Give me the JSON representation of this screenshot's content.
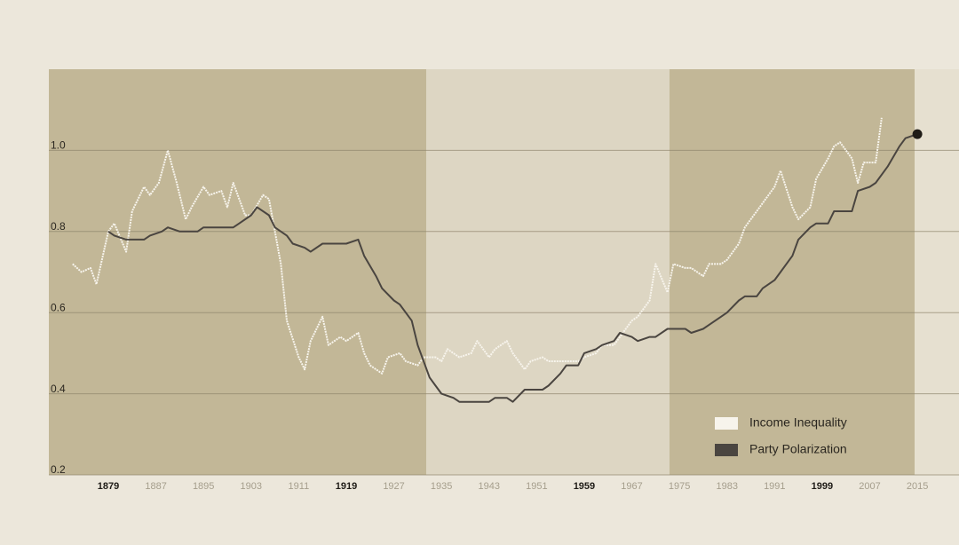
{
  "chart_data": {
    "type": "line",
    "xlim": [
      1869,
      2022
    ],
    "ylim": [
      0.2,
      1.2
    ],
    "xticks": [
      1879,
      1887,
      1895,
      1903,
      1911,
      1919,
      1927,
      1935,
      1943,
      1951,
      1959,
      1967,
      1975,
      1983,
      1991,
      1999,
      2007,
      2015
    ],
    "yticks": [
      {
        "value": 0.2,
        "label": "0.2"
      },
      {
        "value": 0.4,
        "label": "0.4"
      },
      {
        "value": 0.6,
        "label": "0.6"
      },
      {
        "value": 0.8,
        "label": "0.8"
      },
      {
        "value": 1,
        "label": "1.0"
      }
    ],
    "grid": true,
    "legend": "lower right",
    "series": [
      {
        "name": "Income Inequality",
        "color": "#f7f4ec",
        "x": [
          1873,
          1874.5,
          1876,
          1877,
          1879,
          1880,
          1882,
          1883,
          1885,
          1886,
          1887.5,
          1889,
          1890.5,
          1892,
          1893,
          1895,
          1896,
          1898,
          1899,
          1900,
          1902,
          1903,
          1905,
          1906,
          1908,
          1909,
          1911,
          1912,
          1913,
          1915,
          1916,
          1918,
          1919,
          1921,
          1922,
          1923,
          1925,
          1926,
          1928,
          1929,
          1931,
          1932,
          1934,
          1935,
          1936,
          1938,
          1940,
          1941,
          1943,
          1944,
          1946,
          1947,
          1949,
          1950,
          1952,
          1953,
          1955,
          1956,
          1958,
          1959,
          1961,
          1962,
          1964,
          1965,
          1967,
          1968,
          1970,
          1971,
          1973,
          1974,
          1976,
          1977,
          1979,
          1980,
          1982,
          1983,
          1985,
          1986,
          1988,
          1989,
          1991,
          1992,
          1994,
          1995,
          1997,
          1998,
          2000,
          2001,
          2002,
          2004,
          2005,
          2006,
          2008,
          2009
        ],
        "values": [
          0.72,
          0.7,
          0.71,
          0.67,
          0.8,
          0.82,
          0.75,
          0.85,
          0.91,
          0.89,
          0.92,
          1.0,
          0.92,
          0.83,
          0.86,
          0.91,
          0.89,
          0.9,
          0.86,
          0.92,
          0.84,
          0.84,
          0.89,
          0.88,
          0.72,
          0.58,
          0.49,
          0.46,
          0.53,
          0.59,
          0.52,
          0.54,
          0.53,
          0.55,
          0.5,
          0.47,
          0.45,
          0.49,
          0.5,
          0.48,
          0.47,
          0.49,
          0.49,
          0.48,
          0.51,
          0.49,
          0.5,
          0.53,
          0.49,
          0.51,
          0.53,
          0.5,
          0.46,
          0.48,
          0.49,
          0.48,
          0.48,
          0.48,
          0.48,
          0.49,
          0.5,
          0.52,
          0.52,
          0.54,
          0.58,
          0.59,
          0.63,
          0.72,
          0.65,
          0.72,
          0.71,
          0.71,
          0.69,
          0.72,
          0.72,
          0.73,
          0.77,
          0.81,
          0.85,
          0.87,
          0.91,
          0.95,
          0.86,
          0.83,
          0.86,
          0.93,
          0.98,
          1.01,
          1.02,
          0.98,
          0.92,
          0.97,
          0.97,
          1.08
        ]
      },
      {
        "name": "Party Polarization",
        "color": "#4a4540",
        "x": [
          1879,
          1880,
          1882,
          1883,
          1885,
          1886,
          1888,
          1889,
          1891,
          1892,
          1894,
          1895,
          1897,
          1898,
          1900,
          1901,
          1903,
          1904,
          1906,
          1907,
          1909,
          1910,
          1912,
          1913,
          1915,
          1916,
          1918,
          1919,
          1921,
          1922,
          1924,
          1925,
          1927,
          1928,
          1930,
          1931,
          1933,
          1934,
          1935,
          1937,
          1938,
          1940,
          1941,
          1943,
          1944,
          1946,
          1947,
          1949,
          1950,
          1952,
          1953,
          1955,
          1956,
          1958,
          1959,
          1961,
          1962,
          1964,
          1965,
          1967,
          1968,
          1970,
          1971,
          1973,
          1974,
          1976,
          1977,
          1979,
          1980,
          1982,
          1983,
          1985,
          1986,
          1988,
          1989,
          1991,
          1992,
          1994,
          1995,
          1997,
          1998,
          2000,
          2001,
          2002,
          2004,
          2005,
          2007,
          2008,
          2010,
          2012,
          2013,
          2015
        ],
        "values": [
          0.8,
          0.79,
          0.78,
          0.78,
          0.78,
          0.79,
          0.8,
          0.81,
          0.8,
          0.8,
          0.8,
          0.81,
          0.81,
          0.81,
          0.81,
          0.82,
          0.84,
          0.86,
          0.84,
          0.81,
          0.79,
          0.77,
          0.76,
          0.75,
          0.77,
          0.77,
          0.77,
          0.77,
          0.78,
          0.74,
          0.69,
          0.66,
          0.63,
          0.62,
          0.58,
          0.52,
          0.44,
          0.42,
          0.4,
          0.39,
          0.38,
          0.38,
          0.38,
          0.38,
          0.39,
          0.39,
          0.38,
          0.41,
          0.41,
          0.41,
          0.42,
          0.45,
          0.47,
          0.47,
          0.5,
          0.51,
          0.52,
          0.53,
          0.55,
          0.54,
          0.53,
          0.54,
          0.54,
          0.56,
          0.56,
          0.56,
          0.55,
          0.56,
          0.57,
          0.59,
          0.6,
          0.63,
          0.64,
          0.64,
          0.66,
          0.68,
          0.7,
          0.74,
          0.78,
          0.81,
          0.82,
          0.82,
          0.85,
          0.85,
          0.85,
          0.9,
          0.91,
          0.92,
          0.96,
          1.01,
          1.03,
          1.04
        ]
      }
    ]
  }
}
